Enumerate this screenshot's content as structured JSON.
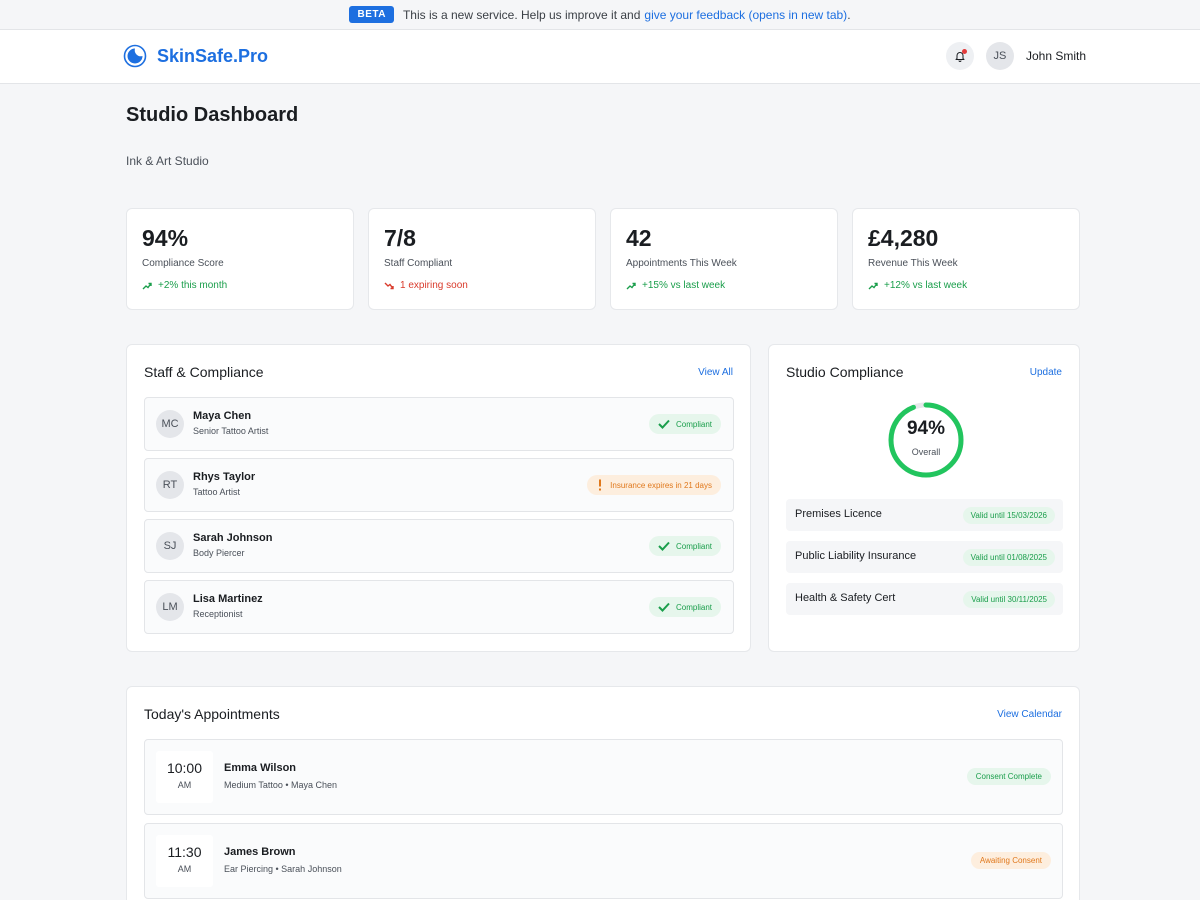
{
  "beta": {
    "tag": "BETA",
    "text": "This is a new service. Help us improve it and",
    "link": "give your feedback (opens in new tab)",
    "end": "."
  },
  "header": {
    "brand": "SkinSafe.Pro",
    "user_initials": "JS",
    "user_name": "John Smith"
  },
  "page": {
    "title": "Studio Dashboard",
    "subtitle": "Ink & Art Studio"
  },
  "stats": [
    {
      "value": "94%",
      "label": "Compliance Score",
      "trend": "+2% this month",
      "direction": "up"
    },
    {
      "value": "7/8",
      "label": "Staff Compliant",
      "trend": "1 expiring soon",
      "direction": "down"
    },
    {
      "value": "42",
      "label": "Appointments This Week",
      "trend": "+15% vs last week",
      "direction": "up"
    },
    {
      "value": "£4,280",
      "label": "Revenue This Week",
      "trend": "+12% vs last week",
      "direction": "up"
    }
  ],
  "staff": {
    "title": "Staff & Compliance",
    "link": "View All",
    "items": [
      {
        "initials": "MC",
        "name": "Maya Chen",
        "role": "Senior Tattoo Artist",
        "status": "Compliant",
        "state": "ok"
      },
      {
        "initials": "RT",
        "name": "Rhys Taylor",
        "role": "Tattoo Artist",
        "status": "Insurance expires in 21 days",
        "state": "warn"
      },
      {
        "initials": "SJ",
        "name": "Sarah Johnson",
        "role": "Body Piercer",
        "status": "Compliant",
        "state": "ok"
      },
      {
        "initials": "LM",
        "name": "Lisa Martinez",
        "role": "Receptionist",
        "status": "Compliant",
        "state": "ok"
      }
    ]
  },
  "studio": {
    "title": "Studio Compliance",
    "link": "Update",
    "score": "94%",
    "score_fraction": 0.94,
    "score_label": "Overall",
    "certs": [
      {
        "name": "Premises Licence",
        "status": "Valid until 15/03/2026"
      },
      {
        "name": "Public Liability Insurance",
        "status": "Valid until 01/08/2025"
      },
      {
        "name": "Health & Safety Cert",
        "status": "Valid until 30/11/2025"
      }
    ]
  },
  "appointments": {
    "title": "Today's Appointments",
    "link": "View Calendar",
    "items": [
      {
        "time": "10:00",
        "ampm": "AM",
        "client": "Emma Wilson",
        "detail": "Medium Tattoo • Maya Chen",
        "status": "Consent Complete",
        "state": "ok"
      },
      {
        "time": "11:30",
        "ampm": "AM",
        "client": "James Brown",
        "detail": "Ear Piercing • Sarah Johnson",
        "status": "Awaiting Consent",
        "state": "warn"
      }
    ]
  },
  "colors": {
    "accent": "#1d6fe0",
    "success": "#1a9e4b",
    "ring": "#22c55e",
    "warning": "#e0781c",
    "danger": "#d93a2b"
  }
}
